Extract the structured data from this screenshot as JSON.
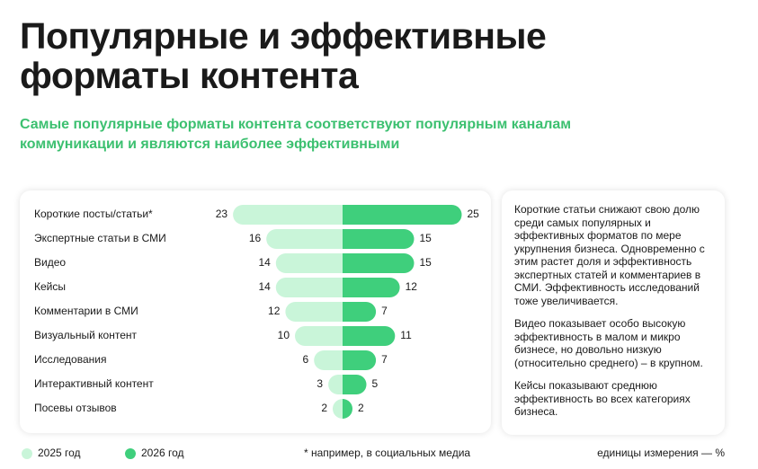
{
  "chart_data": {
    "type": "butterfly-bar",
    "title": "Популярные и эффективные форматы контента",
    "subtitle": "Самые популярные форматы контента соответствуют популярным каналам коммуникации и являются наиболее эффективными",
    "categories": [
      "Короткие посты/статьи*",
      "Экспертные статьи в СМИ",
      "Видео",
      "Кейсы",
      "Комментарии в СМИ",
      "Визуальный контент",
      "Исследования",
      "Интерактивный контент",
      "Посевы отзывов"
    ],
    "series": [
      {
        "name": "2025 год",
        "color": "#c9f5d9",
        "values": [
          23,
          16,
          14,
          14,
          12,
          10,
          6,
          3,
          2
        ]
      },
      {
        "name": "2026 год",
        "color": "#3fcf7c",
        "values": [
          25,
          15,
          15,
          12,
          7,
          11,
          7,
          5,
          2
        ]
      }
    ],
    "notes": [
      "Короткие статьи снижают свою долю среди самых популярных и эффективных форматов по мере укрупнения бизнеса.  Одновременно с этим растет доля и эффективность экспертных статей и комментариев в СМИ. Эффективность исследований тоже увеличивается.",
      "Видео показывает особо высокую эффективность в малом и микро бизнесе, но довольно низкую (относительно среднего) – в крупном.",
      "Кейсы показывают среднюю эффективность во всех категориях бизнеса."
    ],
    "footnote": "* например, в социальных медиа",
    "units": "единицы измерения — %"
  }
}
